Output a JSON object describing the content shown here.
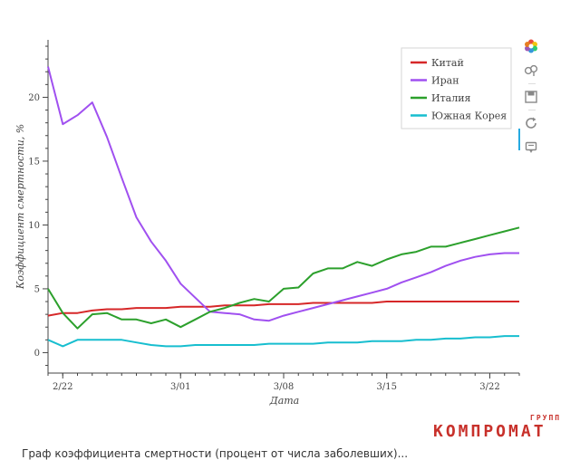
{
  "chart_data": {
    "type": "line",
    "title": "",
    "xlabel": "Дата",
    "ylabel": "Коэффициент смертности, %",
    "x_tick_labels": [
      {
        "label": "2/22",
        "date": "2020-02-22"
      },
      {
        "label": "3/01",
        "date": "2020-03-01"
      },
      {
        "label": "3/08",
        "date": "2020-03-08"
      },
      {
        "label": "3/15",
        "date": "2020-03-15"
      },
      {
        "label": "3/22",
        "date": "2020-03-22"
      }
    ],
    "xlim": [
      "2020-02-21",
      "2020-03-24"
    ],
    "ylim": [
      -1.6,
      24.5
    ],
    "y_ticks": [
      0,
      5,
      10,
      15,
      20
    ],
    "grid": false,
    "legend_position": "top-right",
    "x": [
      "2020-02-21",
      "2020-02-22",
      "2020-02-23",
      "2020-02-24",
      "2020-02-25",
      "2020-02-26",
      "2020-02-27",
      "2020-02-28",
      "2020-02-29",
      "2020-03-01",
      "2020-03-02",
      "2020-03-03",
      "2020-03-04",
      "2020-03-05",
      "2020-03-06",
      "2020-03-07",
      "2020-03-08",
      "2020-03-09",
      "2020-03-10",
      "2020-03-11",
      "2020-03-12",
      "2020-03-13",
      "2020-03-14",
      "2020-03-15",
      "2020-03-16",
      "2020-03-17",
      "2020-03-18",
      "2020-03-19",
      "2020-03-20",
      "2020-03-21",
      "2020-03-22",
      "2020-03-23",
      "2020-03-24"
    ],
    "series": [
      {
        "name": "Китай",
        "color": "#d62728",
        "values": [
          2.9,
          3.1,
          3.1,
          3.3,
          3.4,
          3.4,
          3.5,
          3.5,
          3.5,
          3.6,
          3.6,
          3.6,
          3.7,
          3.7,
          3.7,
          3.8,
          3.8,
          3.8,
          3.9,
          3.9,
          3.9,
          3.9,
          3.9,
          4.0,
          4.0,
          4.0,
          4.0,
          4.0,
          4.0,
          4.0,
          4.0,
          4.0,
          4.0
        ]
      },
      {
        "name": "Иран",
        "color": "#a050f0",
        "values": [
          22.4,
          17.9,
          18.6,
          19.6,
          16.9,
          13.7,
          10.6,
          8.7,
          7.2,
          5.4,
          4.3,
          3.2,
          3.1,
          3.0,
          2.6,
          2.5,
          2.9,
          3.2,
          3.5,
          3.8,
          4.1,
          4.4,
          4.7,
          5.0,
          5.5,
          5.9,
          6.3,
          6.8,
          7.2,
          7.5,
          7.7,
          7.8,
          7.8
        ]
      },
      {
        "name": "Италия",
        "color": "#2ca02c",
        "values": [
          5.0,
          3.1,
          1.9,
          3.0,
          3.1,
          2.6,
          2.6,
          2.3,
          2.6,
          2.0,
          2.6,
          3.2,
          3.5,
          3.9,
          4.2,
          4.0,
          5.0,
          5.1,
          6.2,
          6.6,
          6.6,
          7.1,
          6.8,
          7.3,
          7.7,
          7.9,
          8.3,
          8.3,
          8.6,
          8.9,
          9.2,
          9.5,
          9.8
        ]
      },
      {
        "name": "Южная Корея",
        "color": "#17becf",
        "values": [
          1.0,
          0.5,
          1.0,
          1.0,
          1.0,
          1.0,
          0.8,
          0.6,
          0.5,
          0.5,
          0.6,
          0.6,
          0.6,
          0.6,
          0.6,
          0.7,
          0.7,
          0.7,
          0.7,
          0.8,
          0.8,
          0.8,
          0.9,
          0.9,
          0.9,
          1.0,
          1.0,
          1.1,
          1.1,
          1.2,
          1.2,
          1.3,
          1.3
        ]
      }
    ]
  },
  "toolbar": {
    "items": [
      {
        "icon": "bokeh-logo-icon"
      },
      {
        "icon": "pan-tool-icon"
      },
      {
        "icon": "save-icon"
      },
      {
        "icon": "reset-icon"
      },
      {
        "icon": "hover-tool-icon"
      }
    ],
    "active_color": "#26aae1"
  },
  "watermark": {
    "group": "ГРУПП",
    "main": "КОМПРОМАТ",
    "color": "#c8312b"
  },
  "caption": "Граф коэффициента смертности (процент от числа заболевших)..."
}
